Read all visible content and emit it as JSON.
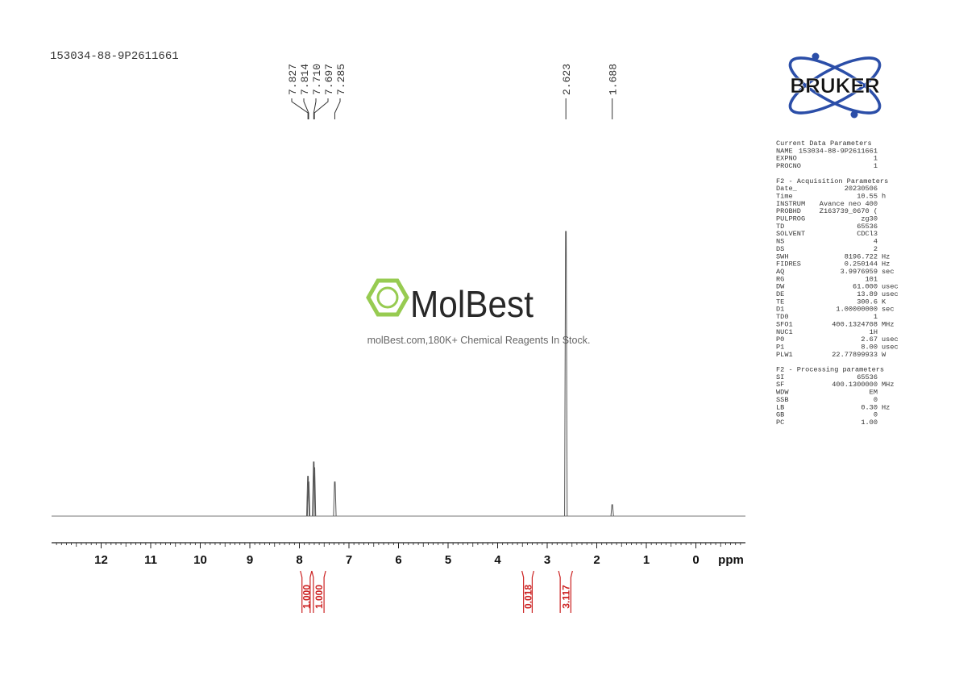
{
  "chart_data": {
    "type": "nmr",
    "title": "153034-88-9P2611661",
    "x_label": "ppm",
    "xlim": [
      13,
      -1
    ],
    "xticks": [
      12,
      11,
      10,
      9,
      8,
      7,
      6,
      5,
      4,
      3,
      2,
      1,
      0
    ],
    "ylim": [
      0,
      100
    ],
    "color": "#555555",
    "peaks": {
      "x": [
        7.827,
        7.814,
        7.71,
        7.697,
        7.285,
        2.623,
        1.688
      ],
      "x_labels": [
        "7.827",
        "7.814",
        "7.710",
        "7.697",
        "7.285",
        "2.623",
        "1.688"
      ],
      "values": [
        14,
        12,
        19,
        17,
        12,
        100,
        4
      ]
    },
    "integrals": {
      "color": "#cc2222",
      "ranges": [
        [
          7.98,
          7.75
        ],
        [
          7.75,
          7.47
        ],
        [
          3.51,
          3.27
        ],
        [
          2.77,
          2.49
        ]
      ],
      "values": [
        1,
        1,
        0.018,
        3.117
      ],
      "value_labels": [
        "1.000",
        "1.000",
        "0.018",
        "3.117"
      ]
    }
  },
  "logo": {
    "text": "BRUKER"
  },
  "watermark": {
    "name": "MolBest",
    "tagline": "molBest.com,180K+ Chemical Reagents In Stock."
  },
  "parameters": {
    "sections": [
      {
        "title": "Current Data Parameters",
        "rows": [
          [
            "NAME",
            "153034-88-9P2611661"
          ],
          [
            "EXPNO",
            "1"
          ],
          [
            "PROCNO",
            "1"
          ]
        ]
      },
      {
        "title": "F2 - Acquisition Parameters",
        "rows": [
          [
            "Date_",
            "20230506"
          ],
          [
            "Time",
            "10.55",
            "h"
          ],
          [
            "INSTRUM",
            "Avance neo 400"
          ],
          [
            "PROBHD",
            "Z163739_0670 ("
          ],
          [
            "PULPROG",
            "zg30"
          ],
          [
            "TD",
            "65536"
          ],
          [
            "SOLVENT",
            "CDCl3"
          ],
          [
            "NS",
            "4"
          ],
          [
            "DS",
            "2"
          ],
          [
            "SWH",
            "8196.722",
            "Hz"
          ],
          [
            "FIDRES",
            "0.250144",
            "Hz"
          ],
          [
            "AQ",
            "3.9976959",
            "sec"
          ],
          [
            "RG",
            "101"
          ],
          [
            "DW",
            "61.000",
            "usec"
          ],
          [
            "DE",
            "13.89",
            "usec"
          ],
          [
            "TE",
            "300.6",
            "K"
          ],
          [
            "D1",
            "1.00000000",
            "sec"
          ],
          [
            "TD0",
            "1"
          ],
          [
            "SFO1",
            "400.1324708",
            "MHz"
          ],
          [
            "NUC1",
            "1H"
          ],
          [
            "P0",
            "2.67",
            "usec"
          ],
          [
            "P1",
            "8.00",
            "usec"
          ],
          [
            "PLW1",
            "22.77899933",
            "W"
          ]
        ]
      },
      {
        "title": "F2 - Processing parameters",
        "rows": [
          [
            "SI",
            "65536"
          ],
          [
            "SF",
            "400.1300000",
            "MHz"
          ],
          [
            "WDW",
            "EM"
          ],
          [
            "SSB",
            "0"
          ],
          [
            "LB",
            "0.30",
            "Hz"
          ],
          [
            "GB",
            "0"
          ],
          [
            "PC",
            "1.00"
          ]
        ]
      }
    ]
  }
}
